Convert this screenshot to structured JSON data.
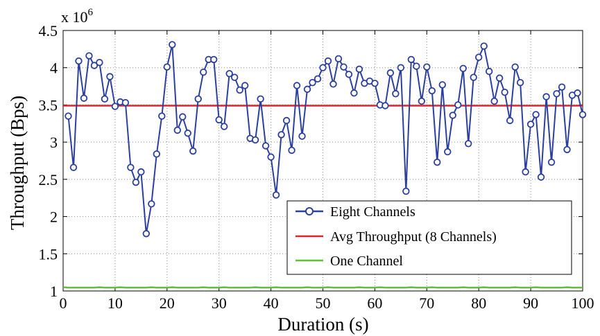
{
  "chart_data": {
    "type": "line",
    "xlabel": "Duration (s)",
    "ylabel": "Throughput (Bps)",
    "xlim": [
      0,
      100
    ],
    "ylim": [
      1,
      4.5
    ],
    "y_multiplier": {
      "base": "x 10",
      "exponent": "6"
    },
    "x_ticks": [
      "0",
      "10",
      "20",
      "30",
      "40",
      "50",
      "60",
      "70",
      "80",
      "90",
      "100"
    ],
    "y_ticks": [
      "1",
      "1.5",
      "2",
      "2.5",
      "3",
      "3.5",
      "4",
      "4.5"
    ],
    "grid": true,
    "legend_position": "bottom-right",
    "series": [
      {
        "name": "Eight Channels",
        "color": "#2b3f9e",
        "marker": "circle",
        "x": [
          1,
          2,
          3,
          4,
          5,
          6,
          7,
          8,
          9,
          10,
          11,
          12,
          13,
          14,
          15,
          16,
          17,
          18,
          19,
          20,
          21,
          22,
          23,
          24,
          25,
          26,
          27,
          28,
          29,
          30,
          31,
          32,
          33,
          34,
          35,
          36,
          37,
          38,
          39,
          40,
          41,
          42,
          43,
          44,
          45,
          46,
          47,
          48,
          49,
          50,
          51,
          52,
          53,
          54,
          55,
          56,
          57,
          58,
          59,
          60,
          61,
          62,
          63,
          64,
          65,
          66,
          67,
          68,
          69,
          70,
          71,
          72,
          73,
          74,
          75,
          76,
          77,
          78,
          79,
          80,
          81,
          82,
          83,
          84,
          85,
          86,
          87,
          88,
          89,
          90,
          91,
          92,
          93,
          94,
          95,
          96,
          97,
          98,
          99,
          100
        ],
        "values": [
          3.35,
          2.66,
          4.09,
          3.59,
          4.16,
          4.03,
          4.07,
          3.58,
          3.88,
          3.48,
          3.54,
          3.53,
          2.66,
          2.46,
          2.6,
          1.77,
          2.17,
          2.84,
          3.35,
          4.01,
          4.31,
          3.16,
          3.34,
          3.12,
          2.88,
          3.58,
          3.94,
          4.11,
          4.11,
          3.3,
          3.21,
          3.92,
          3.87,
          3.7,
          3.76,
          3.05,
          3.03,
          3.58,
          2.95,
          2.8,
          2.29,
          3.1,
          3.29,
          2.89,
          3.76,
          3.08,
          3.71,
          3.8,
          3.85,
          4.0,
          4.09,
          3.78,
          4.12,
          4.01,
          3.91,
          3.66,
          3.98,
          3.79,
          3.82,
          3.79,
          3.5,
          3.49,
          3.93,
          3.65,
          4.0,
          2.34,
          4.11,
          4.02,
          3.55,
          4.01,
          3.69,
          2.73,
          3.77,
          2.87,
          3.36,
          3.5,
          3.99,
          2.98,
          3.87,
          4.14,
          4.29,
          3.95,
          3.55,
          3.86,
          3.67,
          3.29,
          4.01,
          3.8,
          2.6,
          3.24,
          3.37,
          2.53,
          3.61,
          2.73,
          3.65,
          3.74,
          2.9,
          3.63,
          3.66,
          3.37
        ]
      },
      {
        "name": "Avg Throughput (8 Channels)",
        "color": "#e8212b",
        "x": [
          0,
          100
        ],
        "values": [
          3.49,
          3.49
        ]
      },
      {
        "name": "One Channel",
        "color": "#5fbf3a",
        "x": [
          0,
          1,
          2,
          3,
          4,
          5,
          6,
          7,
          8,
          9,
          10,
          11,
          12,
          13,
          14,
          15,
          16,
          17,
          18,
          19,
          20,
          21,
          22,
          23,
          24,
          25,
          26,
          27,
          28,
          29,
          30,
          31,
          32,
          33,
          34,
          35,
          36,
          37,
          38,
          39,
          40,
          41,
          42,
          43,
          44,
          45,
          46,
          47,
          48,
          49,
          50,
          51,
          52,
          53,
          54,
          55,
          56,
          57,
          58,
          59,
          60,
          61,
          62,
          63,
          64,
          65,
          66,
          67,
          68,
          69,
          70,
          71,
          72,
          73,
          74,
          75,
          76,
          77,
          78,
          79,
          80,
          81,
          82,
          83,
          84,
          85,
          86,
          87,
          88,
          89,
          90,
          91,
          92,
          93,
          94,
          95,
          96,
          97,
          98,
          99,
          100
        ],
        "values": [
          1.05,
          1.045,
          1.045,
          1.045,
          1.045,
          1.045,
          1.045,
          1.05,
          1.045,
          1.045,
          1.045,
          1.05,
          1.045,
          1.045,
          1.045,
          1.045,
          1.045,
          1.05,
          1.045,
          1.045,
          1.045,
          1.05,
          1.045,
          1.045,
          1.045,
          1.045,
          1.045,
          1.05,
          1.045,
          1.045,
          1.045,
          1.05,
          1.045,
          1.045,
          1.045,
          1.045,
          1.045,
          1.05,
          1.045,
          1.045,
          1.045,
          1.05,
          1.045,
          1.045,
          1.045,
          1.045,
          1.045,
          1.05,
          1.045,
          1.045,
          1.045,
          1.05,
          1.045,
          1.045,
          1.045,
          1.045,
          1.045,
          1.05,
          1.045,
          1.045,
          1.045,
          1.05,
          1.045,
          1.045,
          1.045,
          1.045,
          1.045,
          1.05,
          1.045,
          1.045,
          1.045,
          1.05,
          1.045,
          1.045,
          1.045,
          1.045,
          1.045,
          1.05,
          1.045,
          1.045,
          1.045,
          1.05,
          1.045,
          1.045,
          1.045,
          1.045,
          1.045,
          1.05,
          1.045,
          1.045,
          1.045,
          1.05,
          1.045,
          1.045,
          1.045,
          1.045,
          1.045,
          1.05,
          1.045,
          1.045,
          1.045
        ]
      }
    ]
  }
}
